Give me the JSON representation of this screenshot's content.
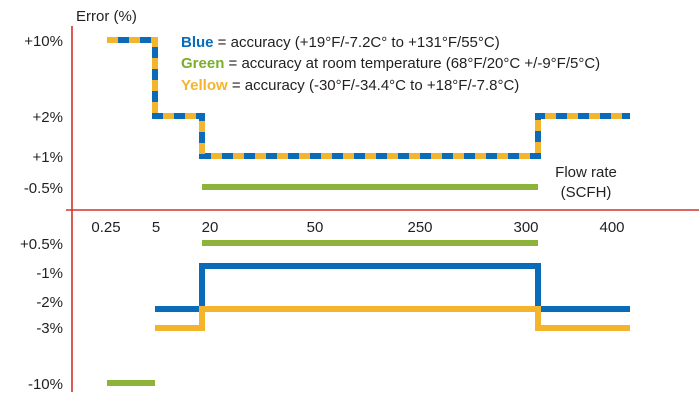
{
  "chart_data": {
    "type": "line",
    "y_axis_label": "Error (%)",
    "x_axis_label_line1": "Flow rate",
    "x_axis_label_line2": "(SCFH)",
    "y_ticks_positive": [
      "+10%",
      "+2%",
      "+1%",
      "-0.5%"
    ],
    "y_ticks_negative": [
      "+0.5%",
      "-1%",
      "-2%",
      "-3%",
      "-10%"
    ],
    "x_ticks": [
      "0.25",
      "5",
      "20",
      "50",
      "250",
      "300",
      "400"
    ],
    "legend": [
      {
        "name": "Blue",
        "text": " = accuracy (+19°F/-7.2C° to +131°F/55°C)",
        "color": "#0a6bb8"
      },
      {
        "name": "Green",
        "text": " = accuracy at room temperature (68°F/20°C +/-9°F/5°C)",
        "color": "#7bae2a"
      },
      {
        "name": "Yellow",
        "text": " = accuracy (-30°F/-34.4°C to +18°F/-7.8°C)",
        "color": "#f4b42c"
      }
    ],
    "colors": {
      "blue": "#0a6bb8",
      "green": "#8db33a",
      "yellow": "#f4b42c",
      "axis": "#d0342c"
    },
    "series": [
      {
        "name": "Blue",
        "panel": "upper",
        "flow": [
          "0.25",
          "5",
          "20",
          "300",
          "400"
        ],
        "error_pct": [
          10,
          2,
          1,
          2
        ]
      },
      {
        "name": "Yellow",
        "panel": "upper",
        "flow": [
          "0.25",
          "5",
          "20",
          "300",
          "400"
        ],
        "error_pct": [
          10,
          2,
          1,
          2
        ]
      },
      {
        "name": "Green",
        "panel": "upper",
        "flow": [
          "0.25",
          "5"
        ],
        "error_pct": [
          10
        ]
      },
      {
        "name": "Green",
        "panel": "upper",
        "flow": [
          "20",
          "300"
        ],
        "error_pct": [
          -0.5
        ]
      },
      {
        "name": "Green",
        "panel": "lower",
        "flow": [
          "20",
          "300"
        ],
        "error_pct": [
          0.5
        ]
      },
      {
        "name": "Blue",
        "panel": "lower",
        "flow": [
          "5",
          "20",
          "300",
          "400"
        ],
        "error_pct": [
          -2,
          -1,
          -2
        ]
      },
      {
        "name": "Yellow",
        "panel": "lower",
        "flow": [
          "5",
          "20",
          "300",
          "400"
        ],
        "error_pct": [
          -3,
          -2,
          -3
        ]
      },
      {
        "name": "Green",
        "panel": "lower",
        "flow": [
          "0.25",
          "5"
        ],
        "error_pct": [
          -10
        ]
      }
    ]
  }
}
